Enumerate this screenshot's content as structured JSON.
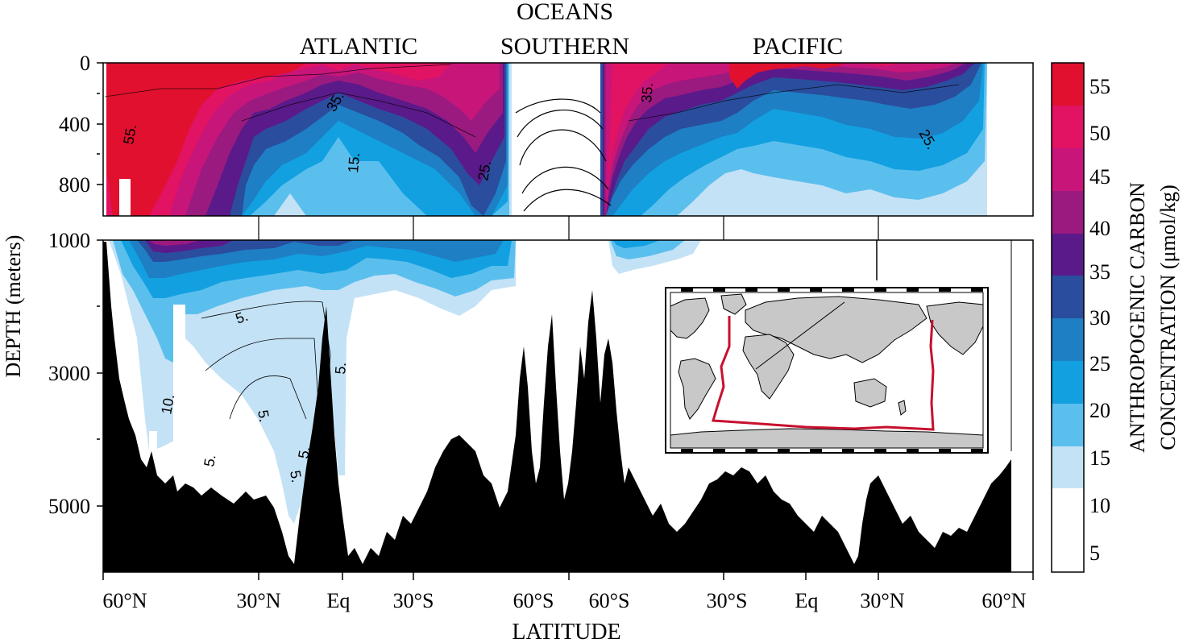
{
  "chart_data": {
    "type": "heatmap",
    "title": "",
    "xlabel": "LATITUDE",
    "ylabel": "DEPTH (meters)",
    "ocean_labels": [
      {
        "name": "ATLANTIC"
      },
      {
        "name": "OCEANS",
        "line2": "SOUTHERN"
      },
      {
        "name": "PACIFIC"
      }
    ],
    "x_ticks": [
      "60°N",
      "30°N",
      "Eq",
      "30°S",
      "60°S",
      "60°S",
      "30°S",
      "Eq",
      "30°N",
      "60°N"
    ],
    "y_ticks_upper": [
      "0",
      "400",
      "800"
    ],
    "y_ticks_lower": [
      "1000",
      "3000",
      "5000"
    ],
    "upper_depth_range_m": [
      0,
      1000
    ],
    "lower_depth_range_m": [
      1000,
      6000
    ],
    "colorbar": {
      "label_line1": "ANTHROPOGENIC CARBON",
      "label_line2": "CONCENTRATION (μmol/kg)",
      "levels": [
        "5",
        "10",
        "15",
        "20",
        "25",
        "30",
        "35",
        "40",
        "45",
        "50",
        "55"
      ],
      "colors": [
        "#ffffff",
        "#c4e2f6",
        "#5bbfee",
        "#12a0e0",
        "#1e7fc4",
        "#2a4d9e",
        "#5a1a8a",
        "#9a1a80",
        "#c8157a",
        "#e21363",
        "#e0102e"
      ]
    },
    "contour_labels": [
      "55.",
      "35.",
      "35.",
      "15.",
      "25.",
      "25.",
      "5.",
      "10.",
      "5.",
      "5.",
      "5.",
      "5.",
      "5."
    ],
    "inset": {
      "type": "world map",
      "section_track_color": "#c8102e"
    }
  }
}
